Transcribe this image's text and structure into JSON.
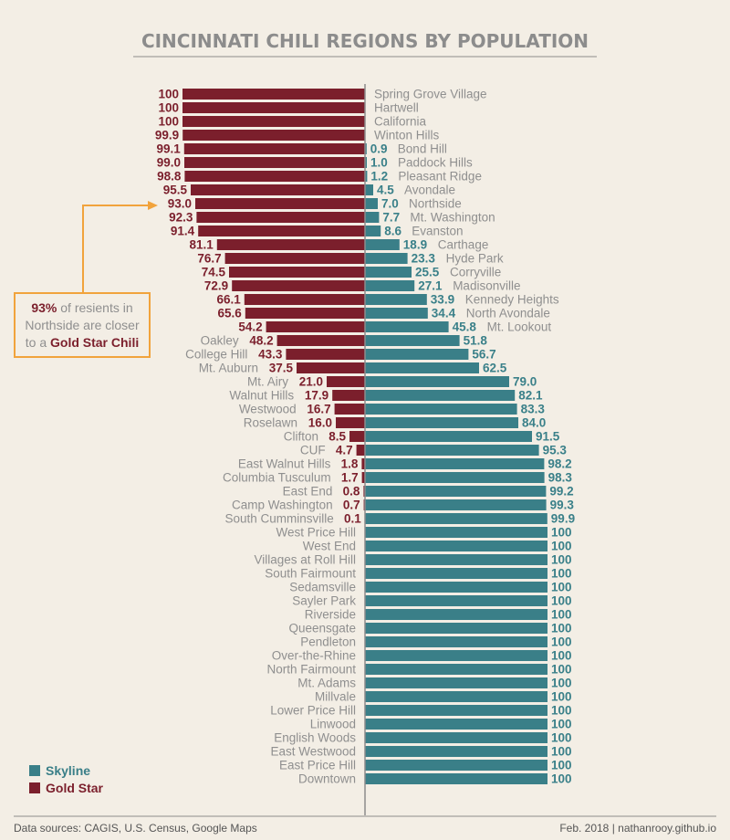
{
  "title": "CINCINNATI CHILI REGIONS BY POPULATION",
  "colors": {
    "gold_star": "#7b1f2c",
    "skyline": "#3a7f88",
    "annotation": "#f1a33c",
    "background": "#f3eee5"
  },
  "annotation": {
    "pct": "93%",
    "line1": " of resients in",
    "line2": "Northside are closer",
    "line3_pre": "to a ",
    "line3_bold": "Gold Star Chili"
  },
  "legend": {
    "skyline": "Skyline",
    "gold_star": "Gold Star"
  },
  "footer": {
    "left": "Data sources: CAGIS, U.S. Census, Google Maps",
    "right": "Feb. 2018 | nathanrooy.github.io"
  },
  "chart_data": {
    "type": "bar",
    "orientation": "horizontal-diverging",
    "categories": [
      "Spring Grove Village",
      "Hartwell",
      "California",
      "Winton Hills",
      "Bond Hill",
      "Paddock Hills",
      "Pleasant Ridge",
      "Avondale",
      "Northside",
      "Mt. Washington",
      "Evanston",
      "Carthage",
      "Hyde Park",
      "Corryville",
      "Madisonville",
      "Kennedy Heights",
      "North Avondale",
      "Mt. Lookout",
      "Oakley",
      "College Hill",
      "Mt. Auburn",
      "Mt. Airy",
      "Walnut Hills",
      "Westwood",
      "Roselawn",
      "Clifton",
      "CUF",
      "East Walnut Hills",
      "Columbia Tusculum",
      "East End",
      "Camp Washington",
      "South Cumminsville",
      "West Price Hill",
      "West End",
      "Villages at Roll Hill",
      "South Fairmount",
      "Sedamsville",
      "Sayler Park",
      "Riverside",
      "Queensgate",
      "Pendleton",
      "Over-the-Rhine",
      "North Fairmount",
      "Mt. Adams",
      "Millvale",
      "Lower Price Hill",
      "Linwood",
      "English Woods",
      "East Westwood",
      "East Price Hill",
      "Downtown"
    ],
    "series": [
      {
        "name": "Gold Star",
        "values": [
          "100",
          "100",
          "100",
          "99.9",
          "99.1",
          "99.0",
          "98.8",
          "95.5",
          "93.0",
          "92.3",
          "91.4",
          "81.1",
          "76.7",
          "74.5",
          "72.9",
          "66.1",
          "65.6",
          "54.2",
          "48.2",
          "43.3",
          "37.5",
          "21.0",
          "17.9",
          "16.7",
          "16.0",
          "8.5",
          "4.7",
          "1.8",
          "1.7",
          "0.8",
          "0.7",
          "0.1",
          "",
          "",
          "",
          "",
          "",
          "",
          "",
          "",
          "",
          "",
          "",
          "",
          "",
          "",
          "",
          "",
          "",
          "",
          ""
        ]
      },
      {
        "name": "Skyline",
        "values": [
          "",
          "",
          "",
          "",
          "0.9",
          "1.0",
          "1.2",
          "4.5",
          "7.0",
          "7.7",
          "8.6",
          "18.9",
          "23.3",
          "25.5",
          "27.1",
          "33.9",
          "34.4",
          "45.8",
          "51.8",
          "56.7",
          "62.5",
          "79.0",
          "82.1",
          "83.3",
          "84.0",
          "91.5",
          "95.3",
          "98.2",
          "98.3",
          "99.2",
          "99.3",
          "99.9",
          "100",
          "100",
          "100",
          "100",
          "100",
          "100",
          "100",
          "100",
          "100",
          "100",
          "100",
          "100",
          "100",
          "100",
          "100",
          "100",
          "100",
          "100",
          "100"
        ]
      }
    ],
    "xlim": [
      0,
      100
    ],
    "legend_position": "bottom-left"
  }
}
